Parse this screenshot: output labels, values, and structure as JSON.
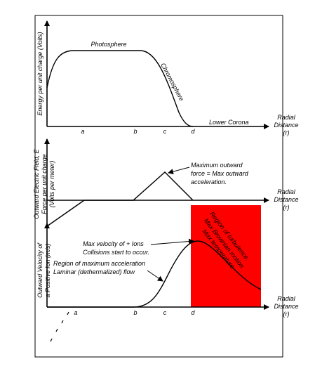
{
  "panels": [
    {
      "y_axis_label": [
        "Energy per unit charge (Volts)"
      ],
      "x_axis_label": [
        "Radial",
        "Distance",
        "(r)"
      ],
      "ticks": [
        "a",
        "b",
        "c",
        "d"
      ],
      "annotations": [
        "Photosphere",
        "Chromosphere",
        "Lower Corona"
      ]
    },
    {
      "y_axis_label": [
        "Outward Electric Field, E",
        "Force per unit charge",
        "(Volts per meter)"
      ],
      "x_axis_label": [
        "Radial",
        "Distance",
        "(r)"
      ],
      "annotations": [
        "Maximum outward",
        "force = Max outward",
        "acceleration."
      ]
    },
    {
      "y_axis_label": [
        "Outward Velocity of",
        "a Positive Ion (m/s)"
      ],
      "x_axis_label": [
        "Radial",
        "Distance",
        "(r)"
      ],
      "ticks": [
        "a",
        "b",
        "c",
        "d"
      ],
      "annotations": [
        "Max velocity of + Ions",
        "Collisions start to occur.",
        "Region of maximum acceleration",
        "Laminar (dethermalized) flow"
      ],
      "region_labels": [
        "Region of turbulence.",
        "Max Brownian motion",
        "Max temperature"
      ]
    }
  ]
}
